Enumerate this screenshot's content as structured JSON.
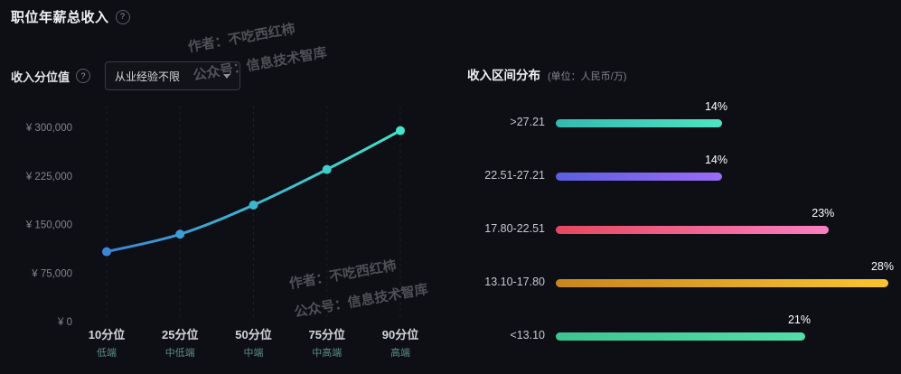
{
  "page": {
    "title": "职位年薪总收入",
    "watermark": {
      "line1": "作者：不吃西红柿",
      "line2": "公众号：信息技术智库"
    }
  },
  "icons": {
    "help": "?"
  },
  "filters": {
    "experience_value": "从业经验不限"
  },
  "chart_data": [
    {
      "type": "line",
      "title": "收入分位值",
      "categories": [
        "10分位",
        "25分位",
        "50分位",
        "75分位",
        "90分位"
      ],
      "category_sublabels": [
        "低端",
        "中低端",
        "中端",
        "中高端",
        "高端"
      ],
      "values": [
        108000,
        135000,
        180000,
        235000,
        295000
      ],
      "ylim": [
        0,
        300000
      ],
      "y_ticks": [
        300000,
        225000,
        150000,
        75000,
        0
      ],
      "y_tick_labels": [
        "¥ 300,000",
        "¥ 225,000",
        "¥ 150,000",
        "¥ 75,000",
        "¥ 0"
      ],
      "grid": "vertical-dashed",
      "legend": "none",
      "line_gradient": [
        "#3b86d8",
        "#43e4c8"
      ]
    },
    {
      "type": "bar",
      "orientation": "horizontal",
      "title": "收入区间分布",
      "unit_note": "(单位：人民币/万)",
      "categories": [
        ">27.21",
        "22.51-27.21",
        "17.80-22.51",
        "13.10-17.80",
        "<13.10"
      ],
      "values": [
        14,
        14,
        23,
        28,
        21
      ],
      "value_suffix": "%",
      "xmax": 28,
      "bar_gradients": [
        [
          "#35b9b0",
          "#50e3c2"
        ],
        [
          "#5a5fe0",
          "#9b6cf6"
        ],
        [
          "#e5485e",
          "#fb7fc1"
        ],
        [
          "#c9861c",
          "#f7c531"
        ],
        [
          "#3cc68e",
          "#52dfa7"
        ]
      ]
    }
  ]
}
